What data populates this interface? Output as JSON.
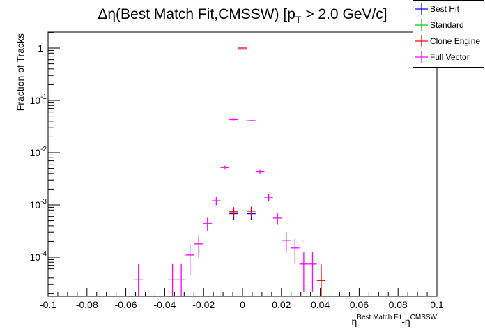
{
  "chart_data": {
    "type": "scatter",
    "title": "Δη(Best Match Fit,CMSSW) [p",
    "title_sub": "T",
    "title_tail": " > 2.0 GeV/c]",
    "xlabel_base1": "η",
    "xlabel_sup1": "Best Match Fit",
    "xlabel_mid": "-η",
    "xlabel_sup2": "CMSSW",
    "ylabel": "Fraction of Tracks",
    "xlim": [
      -0.1,
      0.1
    ],
    "ylim": [
      1.8e-05,
      2.0
    ],
    "yscale": "log",
    "bin_width": 0.0045,
    "single_entry_fraction": 3.7e-05,
    "x_tick_labels": [
      "-0.1",
      "-0.08",
      "-0.06",
      "-0.04",
      "-0.02",
      "0",
      "0.02",
      "0.04",
      "0.06",
      "0.08",
      "0.1"
    ],
    "y_tick_labels": [
      {
        "value": 1,
        "base": "1",
        "exp": ""
      },
      {
        "value": 0.1,
        "base": "10",
        "exp": "-1"
      },
      {
        "value": 0.01,
        "base": "10",
        "exp": "-2"
      },
      {
        "value": 0.001,
        "base": "10",
        "exp": "-3"
      },
      {
        "value": 0.0001,
        "base": "10",
        "exp": "-4"
      }
    ],
    "legend_position": "top-right",
    "series": [
      {
        "name": "Best Hit",
        "color": "#0000ff",
        "x": [
          -0.0045,
          0.0045
        ],
        "y": [
          0.00068,
          0.00068
        ]
      },
      {
        "name": "Standard",
        "color": "#00cc00",
        "x": [],
        "y": []
      },
      {
        "name": "Clone Engine",
        "color": "#ff0000",
        "x": [
          0.0,
          -0.0045,
          0.0045,
          0.0405
        ],
        "y": [
          1.0,
          0.00074,
          0.00076,
          3.6e-05
        ]
      },
      {
        "name": "Full Vector",
        "color": "#ff00ff",
        "x": [
          -0.0535,
          -0.036,
          -0.0315,
          -0.027,
          -0.0225,
          -0.018,
          -0.0135,
          -0.009,
          -0.0045,
          0.0,
          0.0045,
          0.009,
          0.0135,
          0.018,
          0.0225,
          0.027,
          0.0315,
          0.036
        ],
        "y": [
          3.7e-05,
          3.7e-05,
          3.7e-05,
          0.00011,
          0.00018,
          0.00044,
          0.0012,
          0.0052,
          0.043,
          0.95,
          0.041,
          0.0043,
          0.0014,
          0.00056,
          0.00021,
          0.00015,
          7.4e-05,
          7.4e-05
        ]
      }
    ]
  }
}
